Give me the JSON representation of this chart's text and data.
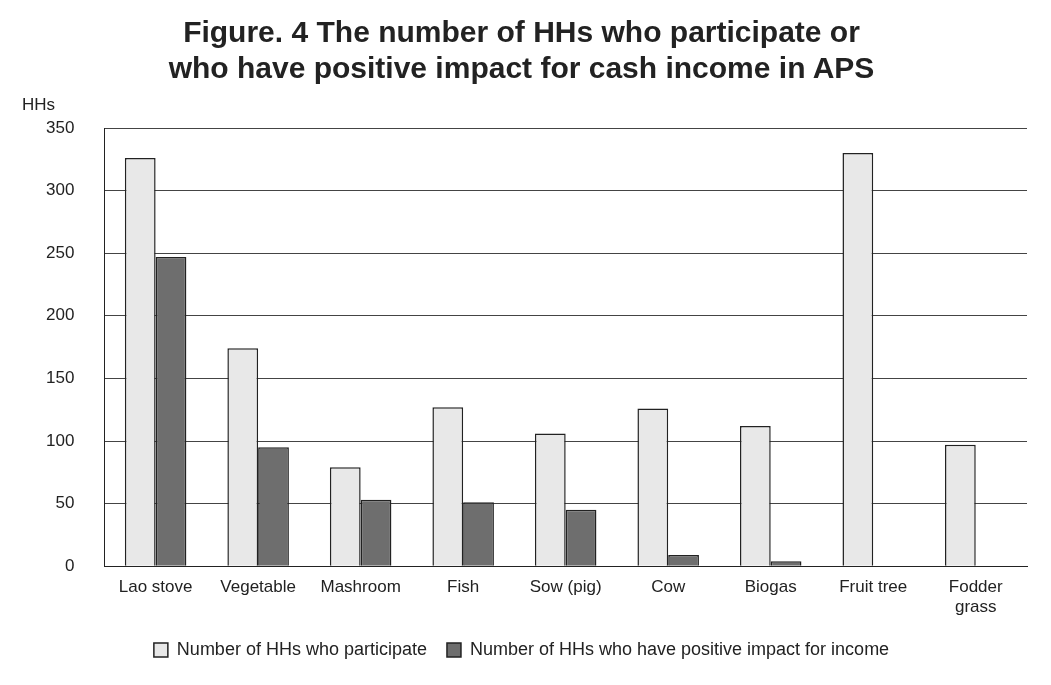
{
  "chart_data": {
    "type": "bar",
    "title": "Figure. 4 The number of HHs who participate or who have positive impact for cash income in APS",
    "ylabel": "HHs",
    "categories": [
      "Lao stove",
      "Vegetable",
      "Mashroom",
      "Fish",
      "Sow (pig)",
      "Cow",
      "Biogas",
      "Fruit tree",
      "Fodder grass"
    ],
    "series": [
      {
        "name": "Number of HHs who participate",
        "color": "#e8e8e8",
        "values": [
          326,
          174,
          79,
          127,
          106,
          126,
          112,
          330,
          97
        ]
      },
      {
        "name": "Number of HHs who have positive impact for income",
        "color": "#6e6e6e",
        "values": [
          247,
          95,
          53,
          51,
          45,
          9,
          4,
          0,
          0
        ]
      }
    ],
    "ylim": [
      0,
      350
    ],
    "yticks": [
      0,
      50,
      100,
      150,
      200,
      250,
      300,
      350
    ],
    "grid": "y",
    "legend": "bottom"
  }
}
